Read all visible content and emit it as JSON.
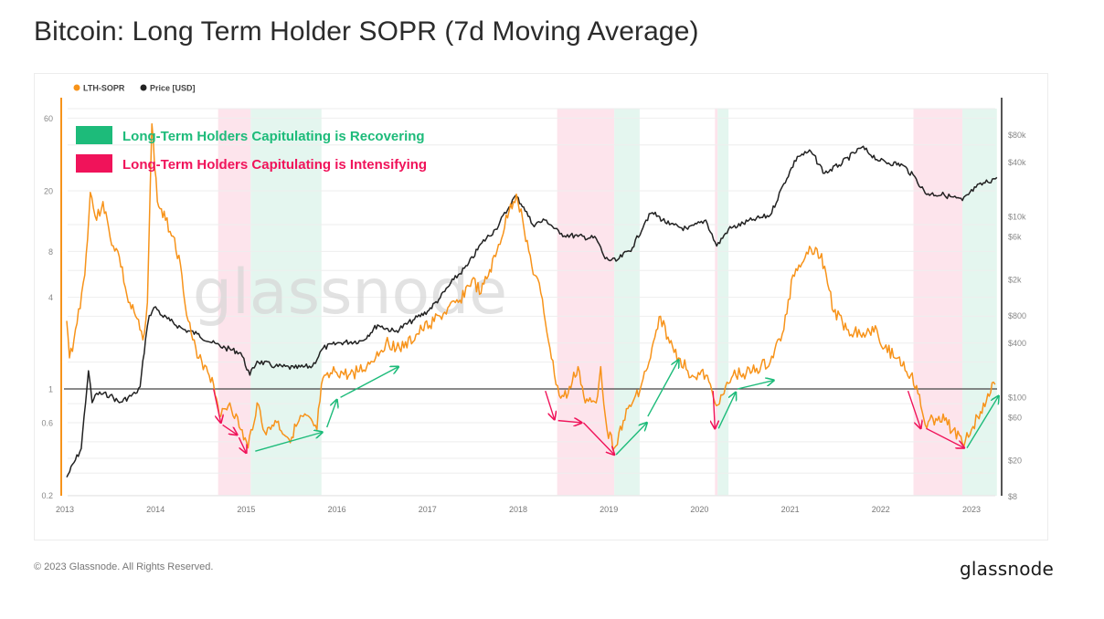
{
  "header": {
    "title": "Bitcoin: Long Term Holder SOPR (7d Moving Average)"
  },
  "footer": {
    "copyright": "© 2023 Glassnode. All Rights Reserved.",
    "brand": "glassnode"
  },
  "colors": {
    "sopr": "#f7931a",
    "price": "#222222",
    "recovering": "#1dbb7a",
    "intensifying": "#f0135a",
    "band_pink": "#fde4ec",
    "band_green": "#e4f6ef",
    "watermark": "#d9d9d9"
  },
  "chart_data": {
    "type": "line",
    "title": "Bitcoin: Long Term Holder SOPR (7d Moving Average)",
    "watermark": "glassnode",
    "legend": {
      "placement": "top-left",
      "entries": [
        {
          "label": "LTH-SOPR",
          "color": "#f7931a"
        },
        {
          "label": "Price [USD]",
          "color": "#222222"
        }
      ]
    },
    "annotation_legend": [
      {
        "label": "Long-Term Holders Capitulating is Recovering",
        "color": "#1dbb7a"
      },
      {
        "label": "Long-Term Holders Capitulating is Intensifying",
        "color": "#f0135a"
      }
    ],
    "x_axis": {
      "label": "",
      "range": [
        2013.0,
        2023.3
      ],
      "ticks": [
        "2013",
        "2014",
        "2015",
        "2016",
        "2017",
        "2018",
        "2019",
        "2020",
        "2021",
        "2022",
        "2023"
      ]
    },
    "y_axis_left": {
      "label": "LTH-SOPR",
      "scale": "log",
      "range": [
        0.2,
        60
      ],
      "ticks": [
        {
          "value": 60,
          "label": "60"
        },
        {
          "value": 20,
          "label": "20"
        },
        {
          "value": 8,
          "label": "8"
        },
        {
          "value": 4,
          "label": "4"
        },
        {
          "value": 1,
          "label": "1"
        },
        {
          "value": 0.6,
          "label": "0.6"
        },
        {
          "value": 0.2,
          "label": "0.2"
        }
      ],
      "reference_line": 1
    },
    "y_axis_right": {
      "label": "Price [USD]",
      "scale": "log",
      "range": [
        8,
        80000
      ],
      "ticks": [
        {
          "value": 80000,
          "label": "$80k"
        },
        {
          "value": 40000,
          "label": "$40k"
        },
        {
          "value": 10000,
          "label": "$10k"
        },
        {
          "value": 6000,
          "label": "$6k"
        },
        {
          "value": 2000,
          "label": "$2k"
        },
        {
          "value": 800,
          "label": "$800"
        },
        {
          "value": 400,
          "label": "$400"
        },
        {
          "value": 100,
          "label": "$100"
        },
        {
          "value": 60,
          "label": "$60"
        },
        {
          "value": 20,
          "label": "$20"
        },
        {
          "value": 8,
          "label": "$8"
        }
      ]
    },
    "grid": true,
    "bands": [
      {
        "type": "intensifying",
        "start": 2014.69,
        "end": 2015.05
      },
      {
        "type": "recovering",
        "start": 2015.05,
        "end": 2015.83
      },
      {
        "type": "intensifying",
        "start": 2018.43,
        "end": 2019.06
      },
      {
        "type": "recovering",
        "start": 2019.06,
        "end": 2019.34
      },
      {
        "type": "intensifying",
        "start": 2020.17,
        "end": 2020.2
      },
      {
        "type": "recovering",
        "start": 2020.2,
        "end": 2020.32
      },
      {
        "type": "intensifying",
        "start": 2022.36,
        "end": 2022.9
      },
      {
        "type": "recovering",
        "start": 2022.9,
        "end": 2023.28
      }
    ],
    "series": [
      {
        "name": "LTH-SOPR",
        "axis": "left",
        "x": [
          2013.02,
          2013.05,
          2013.1,
          2013.22,
          2013.28,
          2013.35,
          2013.42,
          2013.5,
          2013.6,
          2013.7,
          2013.78,
          2013.86,
          2013.91,
          2013.96,
          2014.02,
          2014.11,
          2014.21,
          2014.29,
          2014.36,
          2014.46,
          2014.56,
          2014.64,
          2014.72,
          2014.82,
          2014.94,
          2015.02,
          2015.12,
          2015.22,
          2015.32,
          2015.47,
          2015.63,
          2015.78,
          2015.83,
          2015.98,
          2016.13,
          2016.33,
          2016.54,
          2016.74,
          2016.94,
          2017.14,
          2017.34,
          2017.49,
          2017.59,
          2017.75,
          2017.9,
          2017.98,
          2018.05,
          2018.15,
          2018.25,
          2018.35,
          2018.4,
          2018.47,
          2018.55,
          2018.66,
          2018.74,
          2018.86,
          2018.91,
          2018.98,
          2019.06,
          2019.16,
          2019.26,
          2019.36,
          2019.46,
          2019.57,
          2019.67,
          2019.77,
          2019.92,
          2020.07,
          2020.17,
          2020.27,
          2020.37,
          2020.58,
          2020.78,
          2020.93,
          2021.03,
          2021.18,
          2021.28,
          2021.38,
          2021.48,
          2021.64,
          2021.84,
          2021.94,
          2022.04,
          2022.19,
          2022.33,
          2022.41,
          2022.49,
          2022.64,
          2022.8,
          2022.9,
          2023.0,
          2023.1,
          2023.18,
          2023.26
        ],
        "values": [
          2.8,
          1.6,
          2.1,
          5.6,
          19.5,
          12.8,
          17,
          9.8,
          7.4,
          3.7,
          3.0,
          2.1,
          3.7,
          55,
          17,
          12.8,
          9.8,
          5.6,
          2.8,
          1.6,
          1.4,
          1.07,
          0.66,
          0.81,
          0.54,
          0.41,
          0.81,
          0.5,
          0.62,
          0.47,
          0.66,
          0.54,
          1.07,
          1.3,
          1.23,
          1.4,
          2.0,
          1.86,
          2.45,
          3.0,
          3.7,
          5.2,
          4.25,
          7.4,
          14.8,
          19,
          12.8,
          6.4,
          4.25,
          1.86,
          1.23,
          0.87,
          0.93,
          1.4,
          0.81,
          0.81,
          1.4,
          0.54,
          0.41,
          0.62,
          0.81,
          1.07,
          1.6,
          3.0,
          2.0,
          1.6,
          1.23,
          1.23,
          0.81,
          0.93,
          1.23,
          1.3,
          1.5,
          2.45,
          5.6,
          7.9,
          8.5,
          6.4,
          3.2,
          2.45,
          2.3,
          2.6,
          1.86,
          1.6,
          1.23,
          0.93,
          0.58,
          0.66,
          0.54,
          0.44,
          0.54,
          0.71,
          0.93,
          1.07
        ]
      },
      {
        "name": "Price [USD]",
        "axis": "right",
        "x": [
          2013.02,
          2013.18,
          2013.26,
          2013.3,
          2013.35,
          2013.5,
          2013.6,
          2013.78,
          2013.83,
          2013.89,
          2013.93,
          2014.0,
          2014.07,
          2014.16,
          2014.31,
          2014.46,
          2014.62,
          2014.77,
          2014.94,
          2015.04,
          2015.12,
          2015.32,
          2015.53,
          2015.73,
          2015.85,
          2016.03,
          2016.28,
          2016.45,
          2016.64,
          2016.84,
          2017.0,
          2017.14,
          2017.29,
          2017.44,
          2017.6,
          2017.75,
          2017.9,
          2017.97,
          2018.06,
          2018.16,
          2018.31,
          2018.46,
          2018.66,
          2018.86,
          2018.96,
          2019.08,
          2019.26,
          2019.41,
          2019.48,
          2019.67,
          2019.87,
          2020.07,
          2020.19,
          2020.32,
          2020.58,
          2020.78,
          2020.93,
          2021.08,
          2021.23,
          2021.38,
          2021.54,
          2021.79,
          2021.99,
          2022.24,
          2022.39,
          2022.49,
          2022.7,
          2022.9,
          2023.05,
          2023.28
        ],
        "values": [
          13,
          27,
          196,
          87,
          110,
          105,
          87,
          110,
          130,
          440,
          800,
          1000,
          800,
          700,
          560,
          500,
          400,
          350,
          310,
          175,
          250,
          220,
          210,
          220,
          350,
          400,
          420,
          630,
          530,
          710,
          890,
          1260,
          2000,
          2850,
          5100,
          7200,
          12700,
          17000,
          12700,
          8100,
          9100,
          6400,
          6000,
          5700,
          3400,
          3200,
          4500,
          9100,
          11000,
          8100,
          7200,
          9100,
          4700,
          7200,
          9100,
          10300,
          23000,
          46000,
          52000,
          30000,
          37000,
          58000,
          41000,
          37000,
          26000,
          18000,
          17300,
          15000,
          21000,
          27000
        ]
      }
    ],
    "annotations": [
      {
        "type": "arrow",
        "color": "intensifying",
        "from": [
          2014.64,
          1.0
        ],
        "to": [
          2014.72,
          0.6
        ]
      },
      {
        "type": "arrow",
        "color": "intensifying",
        "from": [
          2014.74,
          0.58
        ],
        "to": [
          2014.9,
          0.5
        ]
      },
      {
        "type": "arrow",
        "color": "intensifying",
        "from": [
          2014.92,
          0.48
        ],
        "to": [
          2015.0,
          0.38
        ]
      },
      {
        "type": "arrow",
        "color": "recovering",
        "from": [
          2015.1,
          0.39
        ],
        "to": [
          2015.84,
          0.52
        ]
      },
      {
        "type": "arrow",
        "color": "recovering",
        "from": [
          2015.89,
          0.56
        ],
        "to": [
          2016.0,
          0.85
        ]
      },
      {
        "type": "arrow",
        "color": "recovering",
        "from": [
          2016.04,
          0.88
        ],
        "to": [
          2016.68,
          1.4
        ]
      },
      {
        "type": "arrow",
        "color": "intensifying",
        "from": [
          2018.3,
          0.97
        ],
        "to": [
          2018.4,
          0.63
        ]
      },
      {
        "type": "arrow",
        "color": "intensifying",
        "from": [
          2018.44,
          0.62
        ],
        "to": [
          2018.7,
          0.6
        ]
      },
      {
        "type": "arrow",
        "color": "intensifying",
        "from": [
          2018.72,
          0.6
        ],
        "to": [
          2019.06,
          0.37
        ]
      },
      {
        "type": "arrow",
        "color": "recovering",
        "from": [
          2019.08,
          0.37
        ],
        "to": [
          2019.42,
          0.6
        ]
      },
      {
        "type": "arrow",
        "color": "recovering",
        "from": [
          2019.43,
          0.66
        ],
        "to": [
          2019.77,
          1.55
        ]
      },
      {
        "type": "arrow",
        "color": "intensifying",
        "from": [
          2020.15,
          0.97
        ],
        "to": [
          2020.17,
          0.55
        ]
      },
      {
        "type": "arrow",
        "color": "recovering",
        "from": [
          2020.21,
          0.55
        ],
        "to": [
          2020.4,
          0.95
        ]
      },
      {
        "type": "arrow",
        "color": "recovering",
        "from": [
          2020.42,
          1.0
        ],
        "to": [
          2020.82,
          1.14
        ]
      },
      {
        "type": "arrow",
        "color": "intensifying",
        "from": [
          2022.3,
          0.97
        ],
        "to": [
          2022.44,
          0.55
        ]
      },
      {
        "type": "arrow",
        "color": "intensifying",
        "from": [
          2022.5,
          0.55
        ],
        "to": [
          2022.92,
          0.41
        ]
      },
      {
        "type": "arrow",
        "color": "recovering",
        "from": [
          2022.95,
          0.41
        ],
        "to": [
          2023.3,
          0.9
        ]
      }
    ]
  }
}
